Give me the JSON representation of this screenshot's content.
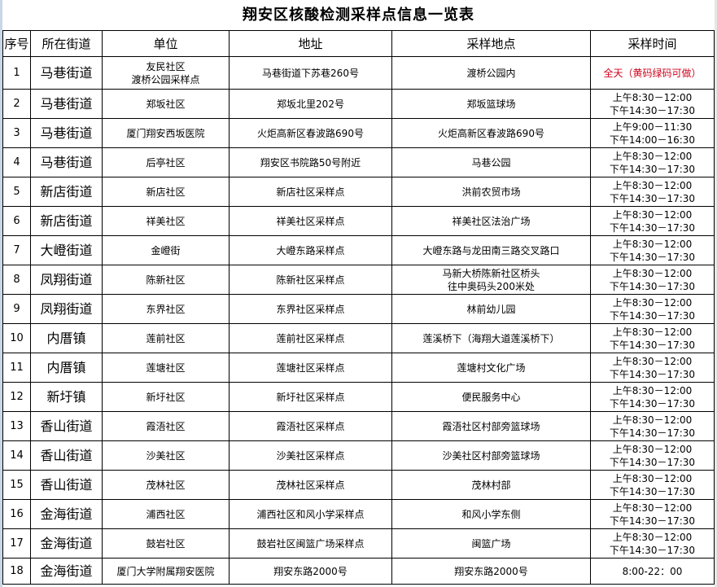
{
  "title": "翔安区核酸检测采样点信息一览表",
  "headers": [
    "序号",
    "所在街道",
    "单位",
    "地址",
    "采样地点",
    "采样时间"
  ],
  "accent_red": "#d0021b",
  "rows": [
    {
      "no": "1",
      "street": "马巷街道",
      "unit": [
        "友民社区",
        "渡桥公园采样点"
      ],
      "address": "马巷街道下苏巷260号",
      "site": [
        "渡桥公园内"
      ],
      "time": [
        "全天（黄码绿码可做）"
      ],
      "time_red": true
    },
    {
      "no": "2",
      "street": "马巷街道",
      "unit": [
        "郑坂社区"
      ],
      "address": "郑坂北里202号",
      "site": [
        "郑坂篮球场"
      ],
      "time": [
        "上午8:30－12:00",
        "下午14:30－17:30"
      ]
    },
    {
      "no": "3",
      "street": "马巷街道",
      "unit": [
        "厦门翔安西坂医院"
      ],
      "address": "火炬高新区春波路690号",
      "site": [
        "火炬高新区春波路690号"
      ],
      "time": [
        "上午9:00－11:30",
        "下午14:00－16:30"
      ]
    },
    {
      "no": "4",
      "street": "马巷街道",
      "unit": [
        "后亭社区"
      ],
      "address": "翔安区书院路50号附近",
      "site": [
        "马巷公园"
      ],
      "time": [
        "上午8:30－12:00",
        "下午14:30－17:30"
      ]
    },
    {
      "no": "5",
      "street": "新店街道",
      "unit": [
        "新店社区"
      ],
      "address": "新店社区采样点",
      "site": [
        "洪前农贸市场"
      ],
      "time": [
        "上午8:30－12:00",
        "下午14:30－17:30"
      ]
    },
    {
      "no": "6",
      "street": "新店街道",
      "unit": [
        "祥美社区"
      ],
      "address": "祥美社区采样点",
      "site": [
        "祥美社区法治广场"
      ],
      "time": [
        "上午8:30－12:00",
        "下午14:30－17:30"
      ]
    },
    {
      "no": "7",
      "street": "大嶝街道",
      "unit": [
        "金嶝街"
      ],
      "address": "大嶝东路采样点",
      "site": [
        "大嶝东路与龙田南三路交叉路口"
      ],
      "time": [
        "上午8:30－12:00",
        "下午14:30－17:30"
      ]
    },
    {
      "no": "8",
      "street": "凤翔街道",
      "unit": [
        "陈新社区"
      ],
      "address": "陈新社区采样点",
      "site": [
        "马新大桥陈新社区桥头",
        "往中奥码头200米处"
      ],
      "time": [
        "上午8:30－12:00",
        "下午14:30－17:30"
      ]
    },
    {
      "no": "9",
      "street": "凤翔街道",
      "unit": [
        "东界社区"
      ],
      "address": "东界社区采样点",
      "site": [
        "林前幼儿园"
      ],
      "time": [
        "上午8:30－12:00",
        "下午14:30－17:30"
      ]
    },
    {
      "no": "10",
      "street": "内厝镇",
      "unit": [
        "莲前社区"
      ],
      "address": "莲前社区采样点",
      "site": [
        "莲溪桥下（海翔大道莲溪桥下）"
      ],
      "time": [
        "上午8:30－12:00",
        "下午14:30－17:30"
      ]
    },
    {
      "no": "11",
      "street": "内厝镇",
      "unit": [
        "莲塘社区"
      ],
      "address": "莲塘社区采样点",
      "site": [
        "莲塘村文化广场"
      ],
      "time": [
        "上午8:30－12:00",
        "下午14:30－17:30"
      ]
    },
    {
      "no": "12",
      "street": "新圩镇",
      "unit": [
        "新圩社区"
      ],
      "address": "新圩社区采样点",
      "site": [
        "便民服务中心"
      ],
      "time": [
        "上午8:30－12:00",
        "下午14:30－17:30"
      ]
    },
    {
      "no": "13",
      "street": "香山街道",
      "unit": [
        "霞浯社区"
      ],
      "address": "霞浯社区采样点",
      "site": [
        "霞浯社区村部旁篮球场"
      ],
      "time": [
        "上午8:30－12:00",
        "下午14:30－17:30"
      ]
    },
    {
      "no": "14",
      "street": "香山街道",
      "unit": [
        "沙美社区"
      ],
      "address": "沙美社区采样点",
      "site": [
        "沙美社区村部旁篮球场"
      ],
      "time": [
        "上午8:30－12:00",
        "下午14:30－17:30"
      ]
    },
    {
      "no": "15",
      "street": "香山街道",
      "unit": [
        "茂林社区"
      ],
      "address": "茂林社区采样点",
      "site": [
        "茂林村部"
      ],
      "time": [
        "上午8:30－12:00",
        "下午14:30－17:30"
      ]
    },
    {
      "no": "16",
      "street": "金海街道",
      "unit": [
        "浦西社区"
      ],
      "address": "浦西社区和风小学采样点",
      "site": [
        "和风小学东侧"
      ],
      "time": [
        "上午8:30－12:00",
        "下午14:30－17:30"
      ]
    },
    {
      "no": "17",
      "street": "金海街道",
      "unit": [
        "鼓岩社区"
      ],
      "address": "鼓岩社区闽篮广场采样点",
      "site": [
        "闽篮广场"
      ],
      "time": [
        "上午8:30－12:00",
        "下午14:30－17:30"
      ]
    },
    {
      "no": "18",
      "street": "金海街道",
      "unit": [
        "厦门大学附属翔安医院"
      ],
      "address": "翔安东路2000号",
      "site": [
        "翔安东路2000号"
      ],
      "time": [
        "8:00-22：00"
      ]
    }
  ]
}
